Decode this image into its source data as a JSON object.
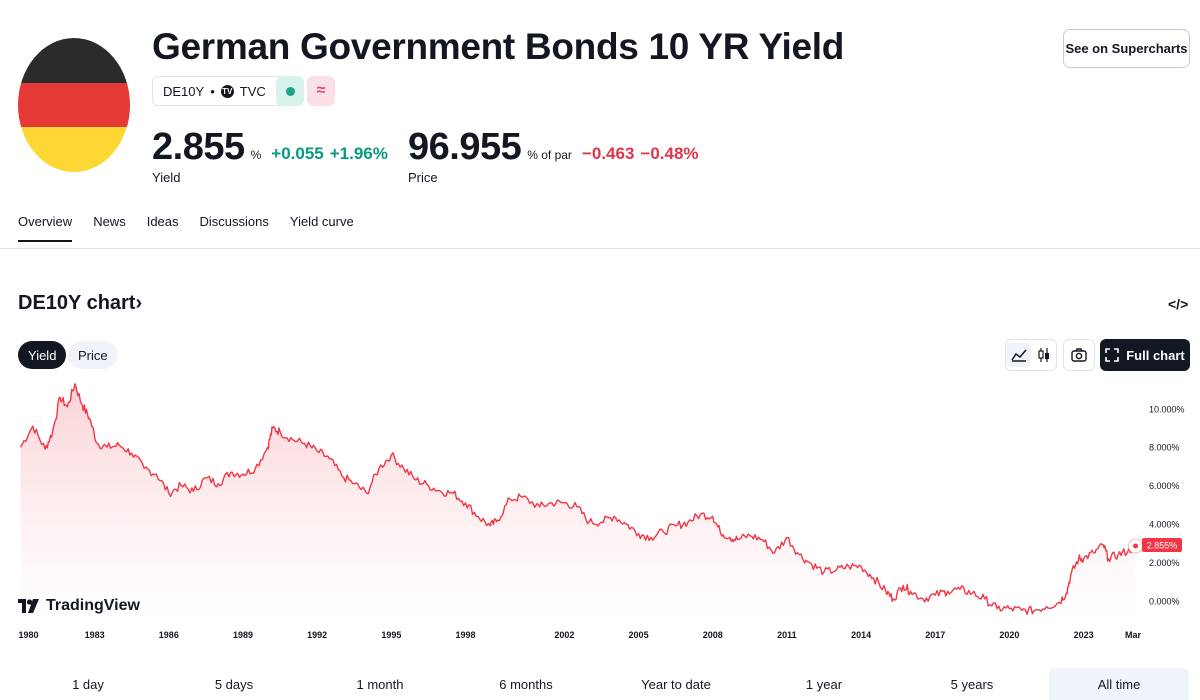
{
  "header": {
    "title": "German Government Bonds 10 YR Yield",
    "symbol": "DE10Y",
    "exchange": "TVC",
    "exchange_badge": "TV",
    "delayed_glyph": "≈",
    "supercharts_label": "See on Supercharts"
  },
  "flag_colors": [
    "#2b2b2b",
    "#e53935",
    "#fdd835"
  ],
  "quote": {
    "yield": {
      "value": "2.855",
      "unit": "%",
      "change": "+0.055",
      "change_pct": "+1.96%",
      "label": "Yield"
    },
    "price": {
      "value": "96.955",
      "unit": "% of par",
      "change": "−0.463",
      "change_pct": "−0.48%",
      "label": "Price"
    }
  },
  "tabs": [
    "Overview",
    "News",
    "Ideas",
    "Discussions",
    "Yield curve"
  ],
  "chart_section": {
    "title": "DE10Y chart",
    "title_chevron": "›",
    "embed_glyph": "</>",
    "modes": [
      "Yield",
      "Price"
    ],
    "active_mode": "Yield",
    "full_chart_label": "Full chart",
    "brand": "TradingView",
    "last_value_label": "2.855%"
  },
  "colors": {
    "line": "#f23645",
    "fill_top": "#fbd0d4",
    "fill_bottom": "#ffffff",
    "positive": "#089981",
    "negative": "#e0364b"
  },
  "chart_data": {
    "type": "area",
    "title": "",
    "xlabel": "",
    "ylabel": "",
    "x_ticks": [
      "1980",
      "1983",
      "1986",
      "1989",
      "1992",
      "1995",
      "1998",
      "2002",
      "2005",
      "2008",
      "2011",
      "2014",
      "2017",
      "2020",
      "2023",
      "Mar"
    ],
    "y_ticks": [
      "0.000%",
      "2.000%",
      "4.000%",
      "6.000%",
      "8.000%",
      "10.000%"
    ],
    "ylim": [
      -1,
      11.5
    ],
    "xlim": [
      1979.9,
      2025.2
    ],
    "grid": false,
    "series": [
      {
        "x": [
          1980.0,
          1980.5,
          1981.0,
          1981.3,
          1981.6,
          1981.9,
          1982.2,
          1982.5,
          1982.8,
          1983.1,
          1983.5,
          1984.0,
          1984.5,
          1985.0,
          1985.5,
          1986.0,
          1986.5,
          1987.0,
          1987.5,
          1988.0,
          1988.5,
          1989.0,
          1989.5,
          1990.0,
          1990.2,
          1990.5,
          1991.0,
          1991.5,
          1992.0,
          1992.5,
          1993.0,
          1993.5,
          1994.0,
          1994.5,
          1995.0,
          1995.5,
          1996.0,
          1996.5,
          1997.0,
          1997.5,
          1998.0,
          1998.5,
          1999.0,
          1999.3,
          1999.8,
          2000.3,
          2001.0,
          2001.5,
          2002.0,
          2002.5,
          2003.0,
          2003.5,
          2004.0,
          2004.5,
          2005.0,
          2005.5,
          2006.0,
          2006.5,
          2007.0,
          2007.5,
          2008.0,
          2008.3,
          2008.7,
          2009.0,
          2009.5,
          2010.0,
          2010.5,
          2011.0,
          2011.5,
          2012.0,
          2012.5,
          2013.0,
          2013.5,
          2014.0,
          2014.5,
          2015.0,
          2015.3,
          2015.7,
          2016.0,
          2016.5,
          2017.0,
          2017.5,
          2018.0,
          2018.5,
          2019.0,
          2019.5,
          2020.0,
          2020.5,
          2021.0,
          2021.5,
          2022.0,
          2022.3,
          2022.5,
          2022.8,
          2023.0,
          2023.4,
          2023.8,
          2024.0,
          2024.4,
          2024.8,
          2025.1
        ],
        "values": [
          8.0,
          9.1,
          7.9,
          8.8,
          10.6,
          10.1,
          11.3,
          10.2,
          9.5,
          8.2,
          8.0,
          8.1,
          7.7,
          6.9,
          6.6,
          5.6,
          6.0,
          5.7,
          6.4,
          6.1,
          6.7,
          6.6,
          6.9,
          8.0,
          9.0,
          8.8,
          8.4,
          8.2,
          7.8,
          7.4,
          6.5,
          6.1,
          5.6,
          6.9,
          7.6,
          6.9,
          6.3,
          6.0,
          5.7,
          5.6,
          5.1,
          4.4,
          3.9,
          4.2,
          5.3,
          5.4,
          4.9,
          5.1,
          5.1,
          4.9,
          4.1,
          4.1,
          4.4,
          4.0,
          3.5,
          3.3,
          3.6,
          3.9,
          4.1,
          4.5,
          4.4,
          3.6,
          3.3,
          3.2,
          3.4,
          3.2,
          2.5,
          3.3,
          2.4,
          1.9,
          1.5,
          1.6,
          1.8,
          1.8,
          1.2,
          0.5,
          0.1,
          0.8,
          0.5,
          0.1,
          0.3,
          0.5,
          0.6,
          0.4,
          0.1,
          -0.4,
          -0.4,
          -0.5,
          -0.5,
          -0.3,
          -0.1,
          0.4,
          1.4,
          2.2,
          2.2,
          2.5,
          2.9,
          2.2,
          2.4,
          2.6,
          2.855
        ]
      }
    ]
  },
  "ranges": [
    "1 day",
    "5 days",
    "1 month",
    "6 months",
    "Year to date",
    "1 year",
    "5 years",
    "All time"
  ],
  "active_range": "All time"
}
